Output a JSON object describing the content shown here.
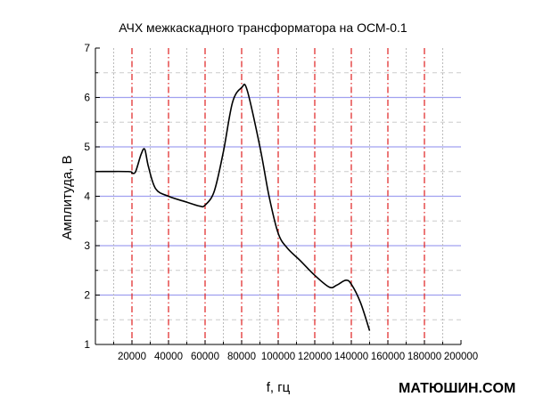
{
  "chart_data": {
    "type": "line",
    "title": "АЧХ межкаскадного трансформатора на ОСМ-0.1",
    "xlabel": "f, гц",
    "ylabel": "Амплитуда, В",
    "xlim": [
      0,
      200000
    ],
    "ylim": [
      1,
      7
    ],
    "x_ticks": [
      "20000",
      "40000",
      "60000",
      "80000",
      "100000",
      "120000",
      "140000",
      "160000",
      "180000",
      "200000"
    ],
    "y_ticks": [
      "1",
      "2",
      "3",
      "4",
      "5",
      "6",
      "7"
    ],
    "grid": true,
    "series": [
      {
        "name": "АЧХ",
        "color": "#000000",
        "x": [
          0,
          18000,
          20000,
          22000,
          25000,
          27000,
          29000,
          33000,
          40000,
          50000,
          57000,
          60000,
          65000,
          70000,
          75000,
          80000,
          83000,
          90000,
          95000,
          100000,
          105000,
          112000,
          120000,
          128000,
          132000,
          137000,
          140000,
          145000,
          150000
        ],
        "y": [
          4.5,
          4.5,
          4.47,
          4.5,
          4.85,
          4.95,
          4.6,
          4.15,
          4.0,
          3.88,
          3.8,
          3.82,
          4.1,
          4.9,
          5.9,
          6.2,
          6.15,
          5.0,
          4.0,
          3.25,
          2.95,
          2.7,
          2.4,
          2.16,
          2.2,
          2.3,
          2.22,
          1.85,
          1.28
        ]
      }
    ]
  },
  "watermark": "МАТЮШИН.COM"
}
